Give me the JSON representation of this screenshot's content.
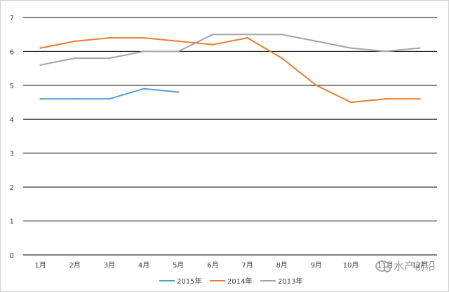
{
  "chart_data": {
    "type": "line",
    "categories": [
      "1月",
      "2月",
      "3月",
      "4月",
      "5月",
      "6月",
      "7月",
      "8月",
      "9月",
      "10月",
      "11月",
      "12月"
    ],
    "ylim": [
      0,
      7
    ],
    "yticks": [
      "0",
      "1",
      "2",
      "3",
      "4",
      "5",
      "6",
      "7"
    ],
    "grid": true,
    "legend_position": "bottom",
    "series": [
      {
        "name": "2015年",
        "color": "#5b9bd5",
        "values": [
          4.6,
          4.6,
          4.6,
          4.9,
          4.8,
          null,
          null,
          null,
          null,
          null,
          null,
          null
        ]
      },
      {
        "name": "2014年",
        "color": "#ed7d31",
        "values": [
          6.1,
          6.3,
          6.4,
          6.4,
          6.3,
          6.2,
          6.4,
          5.8,
          5.0,
          4.5,
          4.6,
          4.6
        ]
      },
      {
        "name": "2013年",
        "color": "#a5a5a5",
        "values": [
          5.6,
          5.8,
          5.8,
          6.0,
          6.0,
          6.5,
          6.5,
          6.5,
          6.3,
          6.1,
          6.0,
          6.1
        ]
      }
    ]
  },
  "watermark": {
    "text": "水产前沿",
    "icon": "wechat-icon"
  }
}
